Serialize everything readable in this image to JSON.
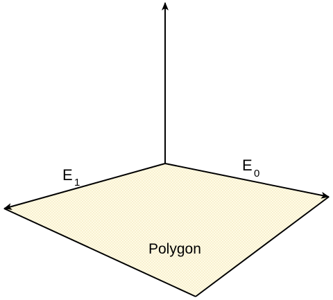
{
  "diagram": {
    "labels": {
      "e1_main": "E",
      "e1_sub": "1",
      "e0_main": "E",
      "e0_sub": "0",
      "polygon": "Polygon"
    },
    "colors": {
      "polygon_fill": "#fffbe6",
      "polygon_dots": "#e8d89a",
      "line": "#000000"
    }
  }
}
